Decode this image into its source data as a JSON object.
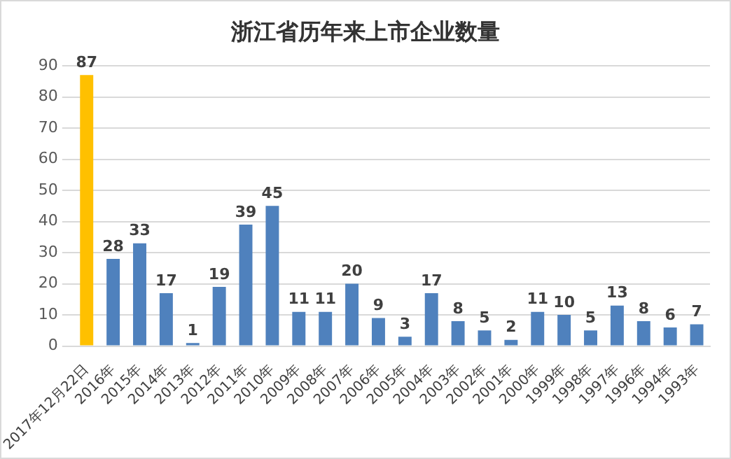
{
  "chart_data": {
    "type": "bar",
    "title": "浙江省历年来上市企业数量",
    "categories": [
      "2017年12月22日",
      "2016年",
      "2015年",
      "2014年",
      "2013年",
      "2012年",
      "2011年",
      "2010年",
      "2009年",
      "2008年",
      "2007年",
      "2006年",
      "2005年",
      "2004年",
      "2003年",
      "2002年",
      "2001年",
      "2000年",
      "1999年",
      "1998年",
      "1997年",
      "1996年",
      "1994年",
      "1993年"
    ],
    "values": [
      87,
      28,
      33,
      17,
      1,
      19,
      39,
      45,
      11,
      11,
      20,
      9,
      3,
      17,
      8,
      5,
      2,
      11,
      10,
      5,
      13,
      8,
      6,
      7
    ],
    "colors": [
      "#ffc000",
      "#4f81bd",
      "#4f81bd",
      "#4f81bd",
      "#4f81bd",
      "#4f81bd",
      "#4f81bd",
      "#4f81bd",
      "#4f81bd",
      "#4f81bd",
      "#4f81bd",
      "#4f81bd",
      "#4f81bd",
      "#4f81bd",
      "#4f81bd",
      "#4f81bd",
      "#4f81bd",
      "#4f81bd",
      "#4f81bd",
      "#4f81bd",
      "#4f81bd",
      "#4f81bd",
      "#4f81bd",
      "#4f81bd"
    ],
    "ylim": [
      0,
      90
    ],
    "yticks": [
      0,
      10,
      20,
      30,
      40,
      50,
      60,
      70,
      80,
      90
    ],
    "grid": "y",
    "data_labels": true,
    "legend": false
  }
}
